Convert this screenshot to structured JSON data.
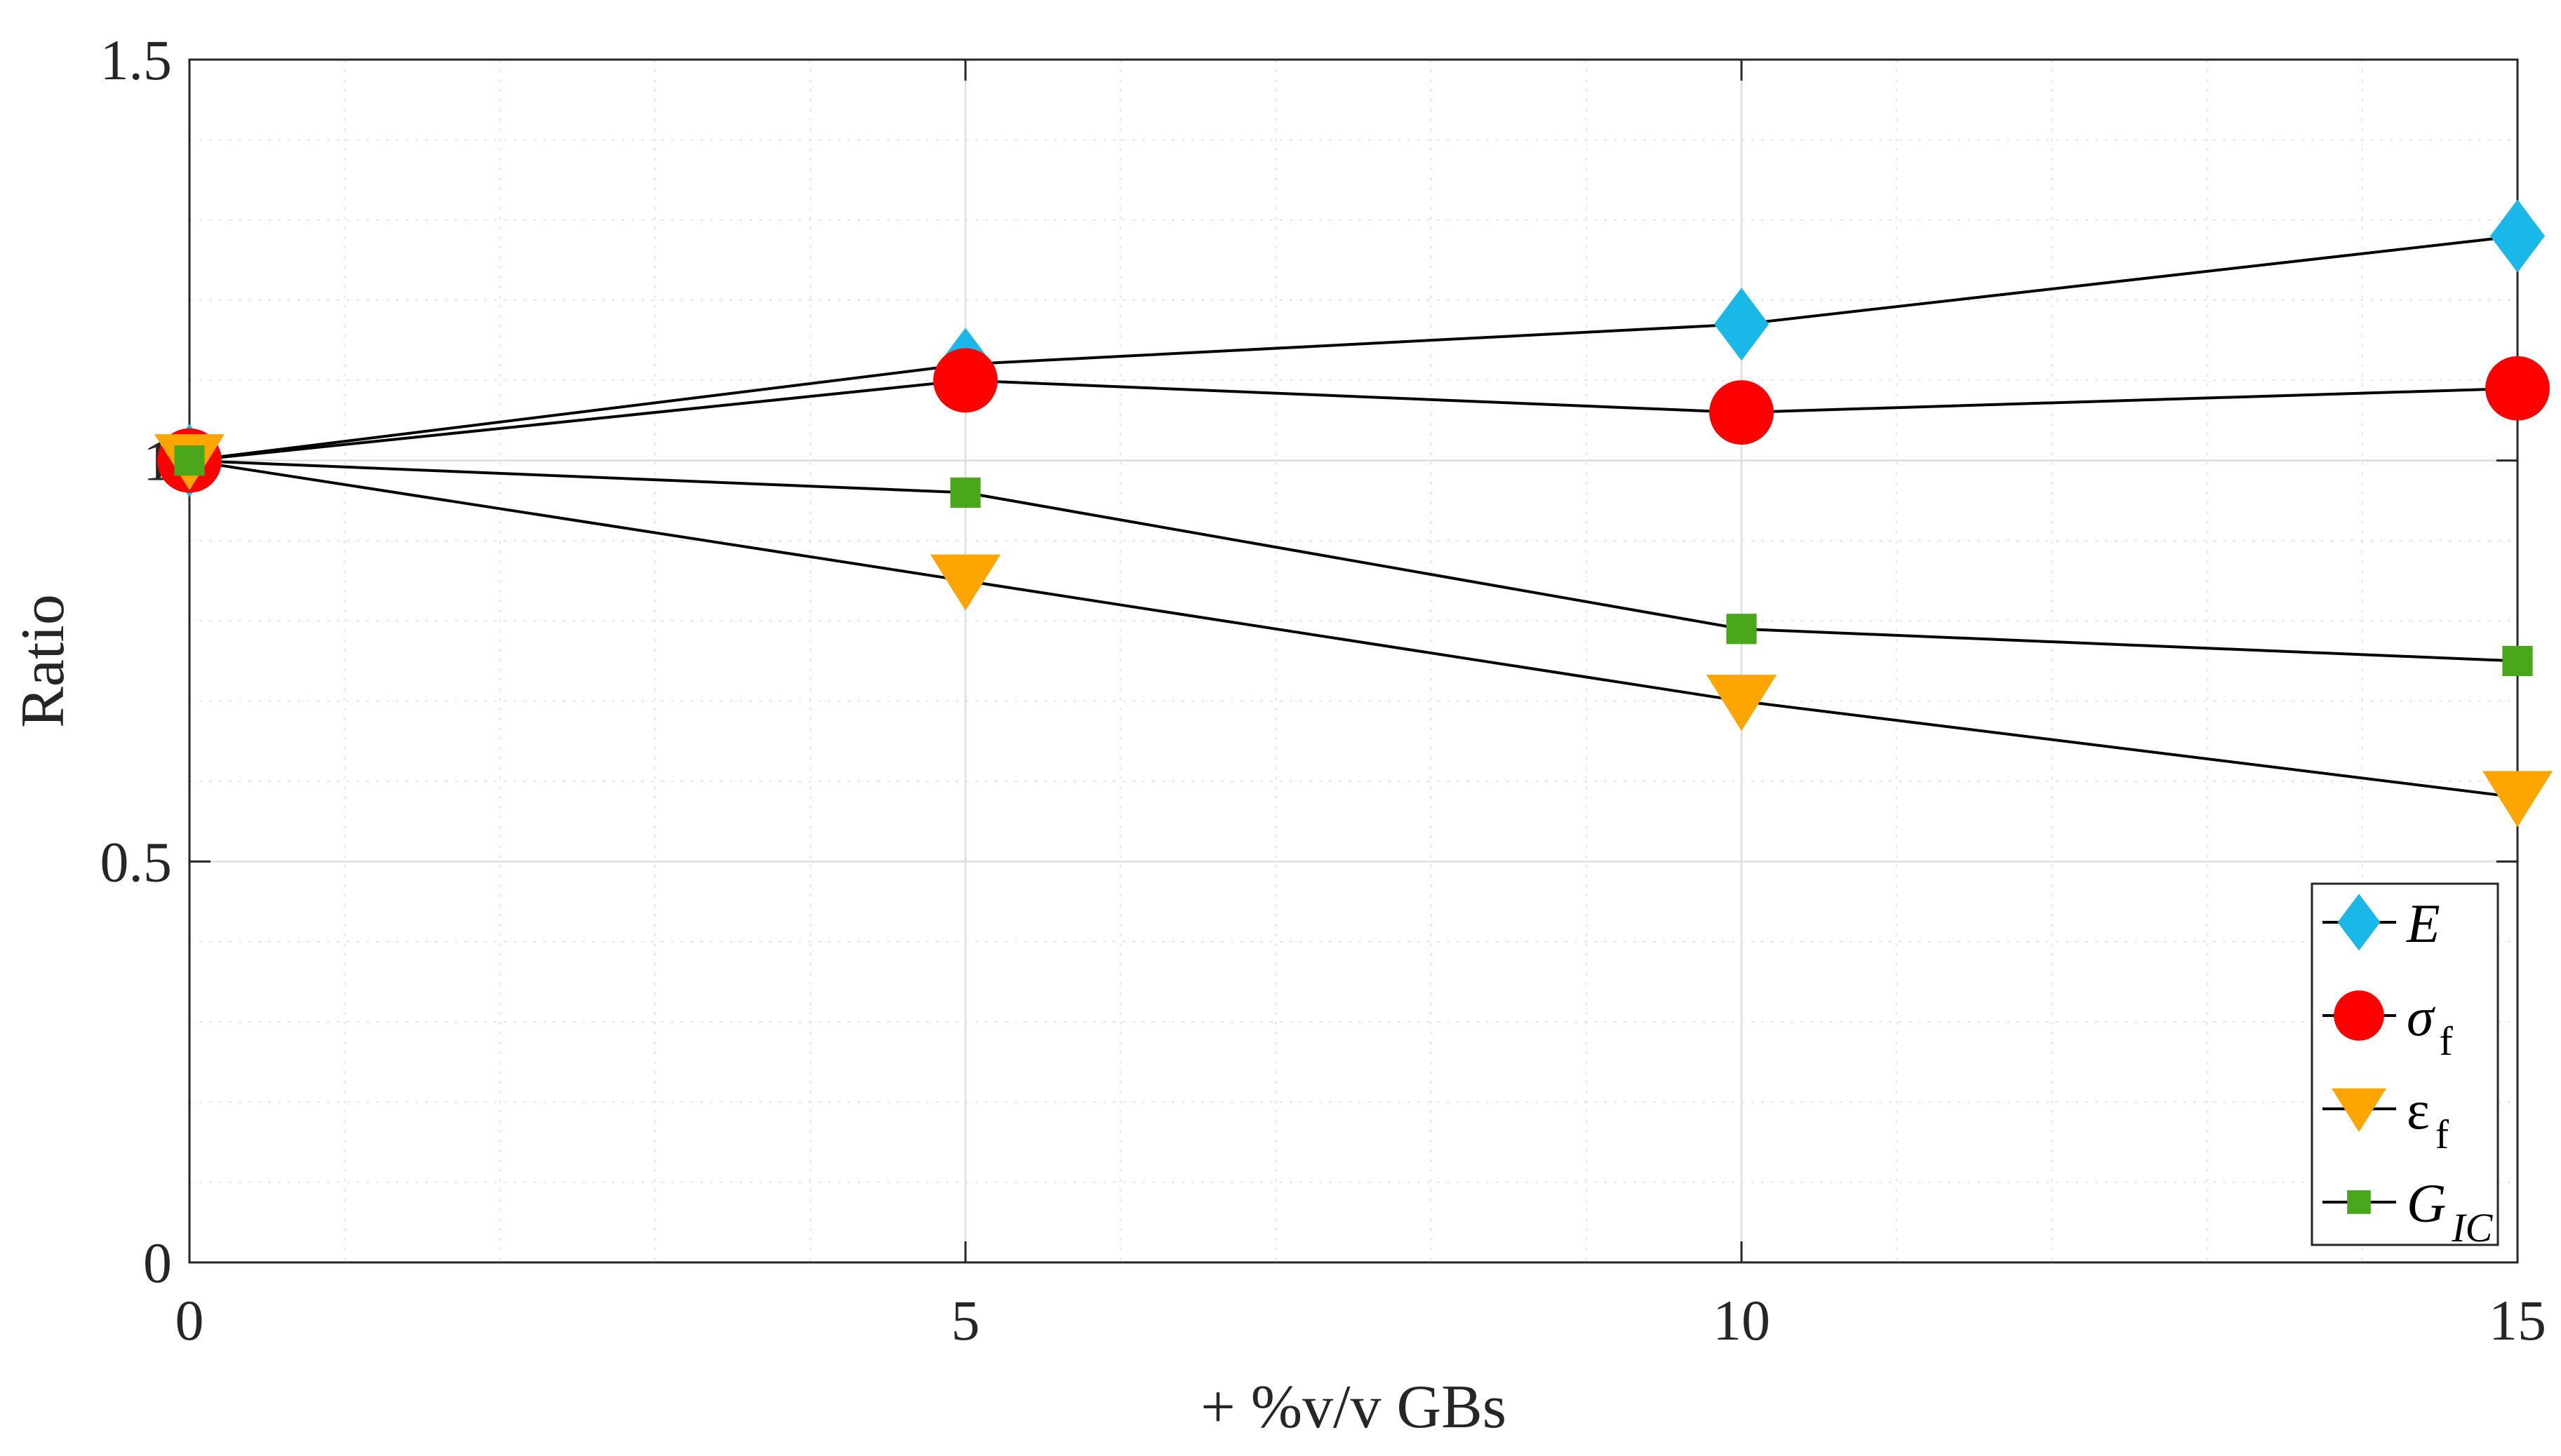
{
  "chart_data": {
    "type": "line",
    "title": "",
    "xlabel": "+ %v/v GBs",
    "ylabel": "Ratio",
    "x": [
      0,
      5,
      10,
      15
    ],
    "xlim": [
      0,
      15
    ],
    "ylim": [
      0,
      1.5
    ],
    "xticks": [
      0,
      5,
      10,
      15
    ],
    "xtick_labels": [
      "0",
      "5",
      "10",
      "15"
    ],
    "yticks": [
      0,
      0.5,
      1,
      1.5
    ],
    "ytick_labels": [
      "0",
      "0.5",
      "1",
      "1.5"
    ],
    "grid": true,
    "minor_grid": true,
    "legend_position": "bottom-right",
    "series": [
      {
        "name": "E",
        "legend_main": "E",
        "legend_sub": "",
        "italic": true,
        "marker": "diamond",
        "color": "#1ab8e8",
        "values": [
          1.0,
          1.12,
          1.17,
          1.28
        ]
      },
      {
        "name": "σf",
        "legend_main": "σ",
        "legend_sub": "f",
        "italic": true,
        "marker": "circle",
        "color": "#ff0000",
        "values": [
          1.0,
          1.1,
          1.06,
          1.09
        ]
      },
      {
        "name": "εf",
        "legend_main": "ε",
        "legend_sub": "f",
        "italic": false,
        "marker": "triangle-down",
        "color": "#ffa500",
        "values": [
          1.0,
          0.85,
          0.7,
          0.58
        ]
      },
      {
        "name": "GIC",
        "legend_main": "G",
        "legend_sub": "IC",
        "italic": true,
        "marker": "square",
        "color": "#4aa61a",
        "values": [
          1.0,
          0.96,
          0.79,
          0.75
        ]
      }
    ]
  }
}
